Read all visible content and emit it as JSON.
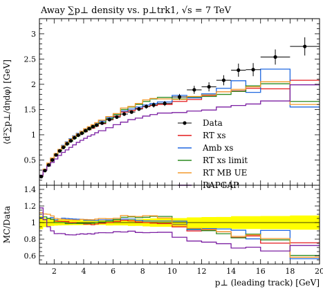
{
  "chart_data": [
    {
      "type": "line",
      "panel": "main",
      "title": "Away ∑p⊥ density vs. p⊥trk1, √s = 7 TeV",
      "ylabel": "⟨d²∑p⊥/dηdφ⟩ [GeV]",
      "xlim": [
        1,
        20
      ],
      "ylim": [
        0,
        3.3
      ],
      "yticks": [
        0.5,
        1,
        1.5,
        2,
        2.5,
        3
      ],
      "bin_edges": [
        1,
        1.25,
        1.5,
        1.75,
        2,
        2.25,
        2.5,
        2.75,
        3,
        3.25,
        3.5,
        3.75,
        4,
        4.25,
        4.5,
        4.75,
        5,
        5.5,
        6,
        6.5,
        7,
        7.5,
        8,
        8.5,
        9,
        10,
        11,
        12,
        13,
        14,
        15,
        16,
        18,
        20
      ],
      "data": {
        "name": "Data",
        "color": "#000000",
        "x": [
          1.125,
          1.375,
          1.625,
          1.875,
          2.125,
          2.375,
          2.625,
          2.875,
          3.125,
          3.375,
          3.625,
          3.875,
          4.125,
          4.375,
          4.625,
          4.875,
          5.25,
          5.75,
          6.25,
          6.75,
          7.25,
          7.75,
          8.25,
          8.75,
          9.5,
          10.5,
          11.5,
          12.5,
          13.5,
          14.5,
          15.5,
          17,
          19
        ],
        "y": [
          0.17,
          0.29,
          0.4,
          0.5,
          0.6,
          0.68,
          0.75,
          0.82,
          0.88,
          0.94,
          0.99,
          1.03,
          1.08,
          1.12,
          1.16,
          1.19,
          1.23,
          1.3,
          1.35,
          1.41,
          1.45,
          1.51,
          1.56,
          1.59,
          1.62,
          1.75,
          1.89,
          1.95,
          2.08,
          2.28,
          2.29,
          2.54,
          2.75
        ],
        "yerr": [
          0.01,
          0.01,
          0.01,
          0.01,
          0.01,
          0.01,
          0.01,
          0.01,
          0.01,
          0.01,
          0.01,
          0.01,
          0.01,
          0.01,
          0.01,
          0.01,
          0.01,
          0.02,
          0.02,
          0.02,
          0.03,
          0.03,
          0.04,
          0.05,
          0.05,
          0.06,
          0.08,
          0.09,
          0.1,
          0.13,
          0.13,
          0.15,
          0.18
        ]
      },
      "series": [
        {
          "name": "RT xs",
          "color": "#e41a1c",
          "values": [
            0.18,
            0.3,
            0.42,
            0.52,
            0.61,
            0.69,
            0.76,
            0.83,
            0.88,
            0.94,
            0.98,
            1.02,
            1.06,
            1.1,
            1.13,
            1.17,
            1.22,
            1.3,
            1.37,
            1.45,
            1.48,
            1.52,
            1.56,
            1.58,
            1.6,
            1.66,
            1.7,
            1.77,
            1.85,
            1.87,
            1.92,
            1.91,
            2.08
          ]
        },
        {
          "name": "Amb xs",
          "color": "#1f67e0",
          "values": [
            0.18,
            0.3,
            0.42,
            0.53,
            0.62,
            0.71,
            0.79,
            0.86,
            0.92,
            0.98,
            1.03,
            1.07,
            1.11,
            1.15,
            1.19,
            1.22,
            1.27,
            1.34,
            1.4,
            1.47,
            1.51,
            1.55,
            1.59,
            1.62,
            1.65,
            1.78,
            1.73,
            1.81,
            1.92,
            2.07,
            1.84,
            2.3,
            1.55
          ]
        },
        {
          "name": "RT xs limit",
          "color": "#2a8a1e",
          "values": [
            0.19,
            0.31,
            0.42,
            0.52,
            0.6,
            0.68,
            0.75,
            0.81,
            0.87,
            0.93,
            0.98,
            1.02,
            1.07,
            1.11,
            1.15,
            1.19,
            1.24,
            1.32,
            1.4,
            1.5,
            1.55,
            1.6,
            1.66,
            1.71,
            1.74,
            1.71,
            1.75,
            1.76,
            1.8,
            1.86,
            1.97,
            2.01,
            1.66
          ]
        },
        {
          "name": "RT MB UE",
          "color": "#f39a2b",
          "values": [
            0.19,
            0.32,
            0.44,
            0.54,
            0.63,
            0.71,
            0.78,
            0.85,
            0.91,
            0.97,
            1.02,
            1.07,
            1.12,
            1.16,
            1.2,
            1.24,
            1.29,
            1.36,
            1.42,
            1.53,
            1.56,
            1.62,
            1.69,
            1.72,
            1.71,
            1.7,
            1.76,
            1.79,
            1.85,
            1.9,
            1.95,
            2.05,
            1.6
          ]
        },
        {
          "name": "RAPGAP",
          "color": "#7b1fa2",
          "values": [
            0.2,
            0.3,
            0.38,
            0.45,
            0.52,
            0.59,
            0.65,
            0.7,
            0.75,
            0.8,
            0.85,
            0.89,
            0.93,
            0.97,
            1.0,
            1.04,
            1.08,
            1.14,
            1.2,
            1.25,
            1.3,
            1.33,
            1.37,
            1.4,
            1.43,
            1.44,
            1.47,
            1.49,
            1.55,
            1.58,
            1.61,
            1.67,
            1.99
          ]
        }
      ],
      "legend_position": "right"
    },
    {
      "type": "line",
      "panel": "ratio",
      "ylabel": "MC/Data",
      "xlabel": "p⊥ (leading track) [GeV]",
      "xlim": [
        1,
        20
      ],
      "ylim": [
        0.5,
        1.45
      ],
      "yticks": [
        0.6,
        0.8,
        1,
        1.2,
        1.4
      ],
      "xticks": [
        2,
        4,
        6,
        8,
        10,
        12,
        14,
        16,
        18,
        20
      ],
      "band_color": "#ffff00"
    }
  ]
}
